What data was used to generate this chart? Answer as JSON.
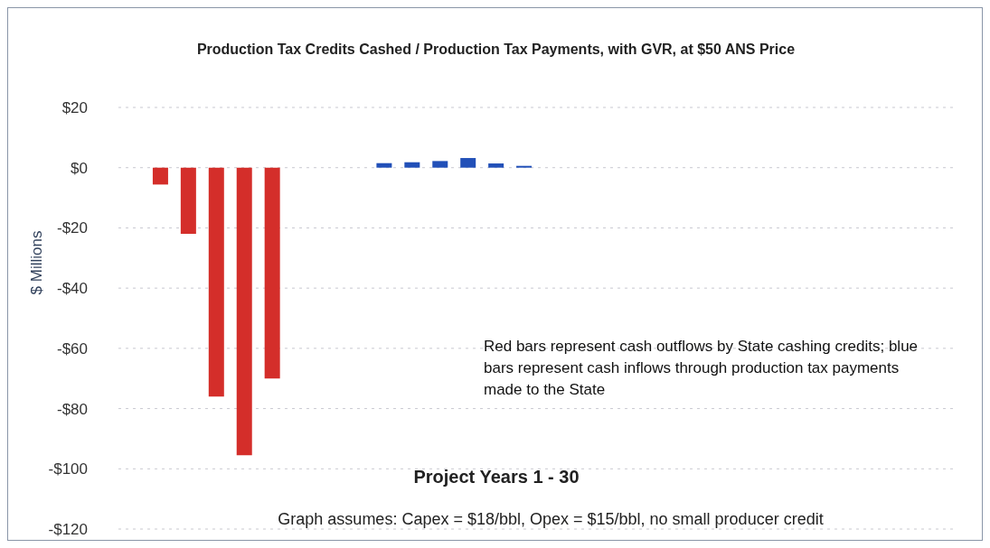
{
  "chart_data": {
    "type": "bar",
    "title": "Production Tax Credits Cashed / Production Tax Payments, with GVR, at $50 ANS Price",
    "xlabel": "Project Years 1 - 30",
    "ylabel": "$ Millions",
    "annotations": [
      "Red bars represent cash outflows by State cashing credits; blue bars represent cash inflows through production tax payments made to the State",
      "Graph assumes: Capex = $18/bbl, Opex = $15/bbl, no small producer credit"
    ],
    "categories": [
      null,
      null,
      null,
      null,
      null,
      null,
      null,
      null,
      null,
      null,
      null,
      null,
      null,
      null,
      null,
      null,
      null,
      null,
      null,
      null,
      null,
      null,
      null,
      null,
      null,
      null,
      null,
      null,
      null,
      null
    ],
    "values": [
      0,
      -5.6,
      -22,
      -76,
      -95.5,
      -70,
      0,
      0,
      0,
      1.5,
      1.8,
      2.2,
      3.2,
      1.4,
      0.6,
      0,
      0,
      0,
      0,
      0,
      0,
      0,
      0,
      0,
      0,
      0,
      0,
      0,
      0,
      0
    ],
    "colors": [
      "#d42e2a",
      "#d42e2a",
      "#d42e2a",
      "#d42e2a",
      "#d42e2a",
      "#d42e2a",
      "#d42e2a",
      "#d42e2a",
      "#d42e2a",
      "#2250b8",
      "#2250b8",
      "#2250b8",
      "#2250b8",
      "#2250b8",
      "#2250b8",
      "#2250b8",
      "#2250b8",
      "#2250b8",
      "#2250b8",
      "#2250b8",
      "#2250b8",
      "#2250b8",
      "#2250b8",
      "#2250b8",
      "#2250b8",
      "#2250b8",
      "#2250b8",
      "#2250b8",
      "#2250b8",
      "#2250b8"
    ],
    "ylim": [
      -120,
      20
    ],
    "yticks": [
      {
        "value": 20,
        "label": "$20"
      },
      {
        "value": 0,
        "label": "$0"
      },
      {
        "value": -20,
        "label": "-$20"
      },
      {
        "value": -40,
        "label": "-$40"
      },
      {
        "value": -60,
        "label": "-$60"
      },
      {
        "value": -80,
        "label": "-$80"
      },
      {
        "value": -100,
        "label": "-$100"
      },
      {
        "value": -120,
        "label": "-$120"
      }
    ],
    "grid": "y"
  }
}
